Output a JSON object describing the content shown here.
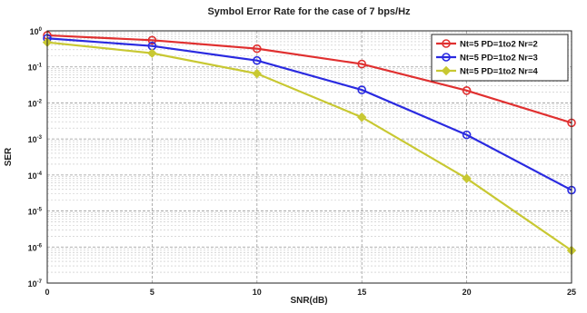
{
  "chart_data": {
    "type": "line",
    "title": "Symbol Error Rate for the case of 7 bps/Hz",
    "xlabel": "SNR(dB)",
    "ylabel": "SER",
    "x": [
      0,
      5,
      10,
      15,
      20,
      25
    ],
    "xlim": [
      0,
      25
    ],
    "ylim": [
      1e-07,
      1
    ],
    "yscale": "log",
    "grid": true,
    "legend_position": "top-right",
    "x_ticks": [
      "0",
      "5",
      "10",
      "15",
      "20",
      "25"
    ],
    "y_ticks": [
      {
        "base": "10",
        "exp": "0"
      },
      {
        "base": "10",
        "exp": "-1"
      },
      {
        "base": "10",
        "exp": "-2"
      },
      {
        "base": "10",
        "exp": "-3"
      },
      {
        "base": "10",
        "exp": "-4"
      },
      {
        "base": "10",
        "exp": "-5"
      },
      {
        "base": "10",
        "exp": "-6"
      },
      {
        "base": "10",
        "exp": "-7"
      }
    ],
    "series": [
      {
        "name": "Nt=5 PD=1to2 Nr=2",
        "color": "#e03030",
        "marker": "circle",
        "values": [
          0.75,
          0.55,
          0.32,
          0.12,
          0.022,
          0.0028
        ]
      },
      {
        "name": "Nt=5 PD=1to2 Nr=3",
        "color": "#2a2ae0",
        "marker": "circle",
        "values": [
          0.62,
          0.38,
          0.15,
          0.023,
          0.0013,
          3.8e-05
        ]
      },
      {
        "name": "Nt=5 PD=1to2 Nr=4",
        "color": "#c8c832",
        "marker": "diamond",
        "values": [
          0.48,
          0.24,
          0.065,
          0.004,
          8e-05,
          8e-07
        ]
      }
    ]
  }
}
